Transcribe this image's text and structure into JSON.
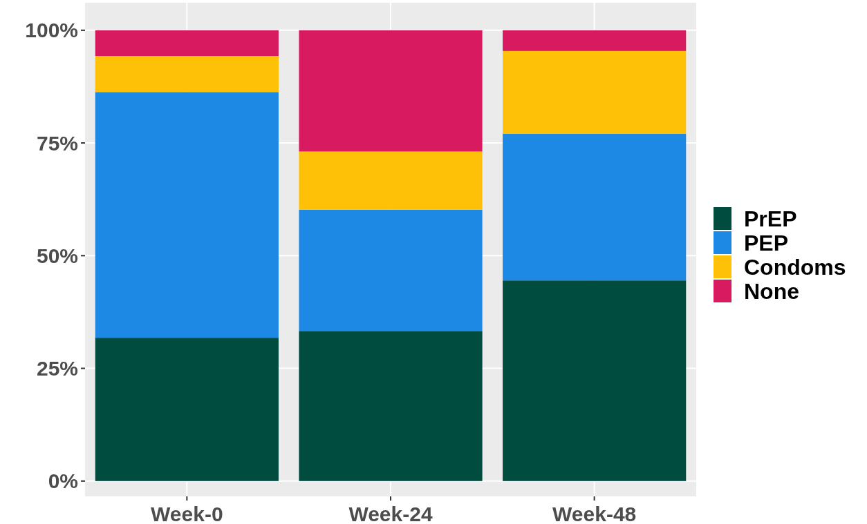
{
  "chart_data": {
    "type": "bar",
    "stacked": true,
    "categories": [
      "Week-0",
      "Week-24",
      "Week-48"
    ],
    "series": [
      {
        "name": "PrEP",
        "color": "#004d40",
        "values": [
          31.8,
          33.3,
          44.5
        ]
      },
      {
        "name": "PEP",
        "color": "#1e88e5",
        "values": [
          54.5,
          26.9,
          32.5
        ]
      },
      {
        "name": "Condoms",
        "color": "#ffc107",
        "values": [
          8.0,
          12.9,
          18.4
        ]
      },
      {
        "name": "None",
        "color": "#d81b60",
        "values": [
          5.7,
          26.9,
          4.6
        ]
      }
    ],
    "ylim": [
      -3.4,
      106.1
    ],
    "yticks": [
      {
        "value": 0,
        "label": "0%"
      },
      {
        "value": 25,
        "label": "25%"
      },
      {
        "value": 50,
        "label": "50%"
      },
      {
        "value": 75,
        "label": "75%"
      },
      {
        "value": 100,
        "label": "100%"
      }
    ],
    "grid": true,
    "legend": "right"
  }
}
